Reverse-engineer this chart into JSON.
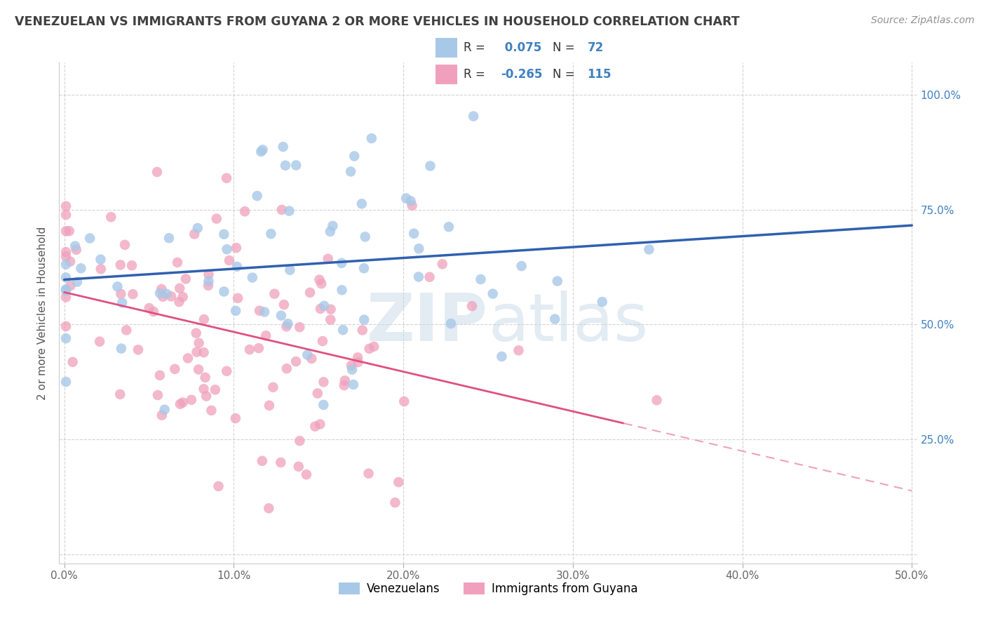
{
  "title": "VENEZUELAN VS IMMIGRANTS FROM GUYANA 2 OR MORE VEHICLES IN HOUSEHOLD CORRELATION CHART",
  "source": "Source: ZipAtlas.com",
  "ylabel": "2 or more Vehicles in Household",
  "blue_R": 0.075,
  "blue_N": 72,
  "pink_R": -0.265,
  "pink_N": 115,
  "blue_color": "#a8c8e8",
  "pink_color": "#f0a0bc",
  "blue_line_color": "#3060b0",
  "pink_line_color": "#e05080",
  "pink_line_color_dash": "#f0a0bc",
  "watermark_color": "#c8d8e8",
  "legend_label_blue": "Venezuelans",
  "legend_label_pink": "Immigrants from Guyana",
  "title_color": "#404040",
  "source_color": "#909090",
  "right_tick_color": "#4080c0",
  "grid_color": "#c8c8c8"
}
